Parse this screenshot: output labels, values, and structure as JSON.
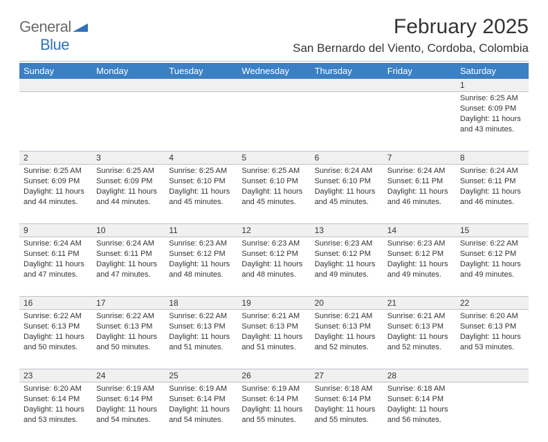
{
  "logo": {
    "text1": "General",
    "text2": "Blue"
  },
  "title": "February 2025",
  "location": "San Bernardo del Viento, Cordoba, Colombia",
  "colors": {
    "header_bg": "#3b7fc4",
    "header_text": "#ffffff",
    "daynum_bg": "#f0f0f0",
    "row_divider": "#b8c3ce",
    "text": "#333333",
    "logo_gray": "#6a6a6a",
    "logo_blue": "#2f71b8",
    "background": "#ffffff"
  },
  "fonts": {
    "title_size": 30,
    "location_size": 17,
    "header_size": 13,
    "daynum_size": 12,
    "body_size": 11,
    "logo_size": 22
  },
  "weekdays": [
    "Sunday",
    "Monday",
    "Tuesday",
    "Wednesday",
    "Thursday",
    "Friday",
    "Saturday"
  ],
  "weeks": [
    [
      null,
      null,
      null,
      null,
      null,
      null,
      {
        "n": "1",
        "sunrise": "6:25 AM",
        "sunset": "6:09 PM",
        "daylight": "11 hours and 43 minutes."
      }
    ],
    [
      {
        "n": "2",
        "sunrise": "6:25 AM",
        "sunset": "6:09 PM",
        "daylight": "11 hours and 44 minutes."
      },
      {
        "n": "3",
        "sunrise": "6:25 AM",
        "sunset": "6:09 PM",
        "daylight": "11 hours and 44 minutes."
      },
      {
        "n": "4",
        "sunrise": "6:25 AM",
        "sunset": "6:10 PM",
        "daylight": "11 hours and 45 minutes."
      },
      {
        "n": "5",
        "sunrise": "6:25 AM",
        "sunset": "6:10 PM",
        "daylight": "11 hours and 45 minutes."
      },
      {
        "n": "6",
        "sunrise": "6:24 AM",
        "sunset": "6:10 PM",
        "daylight": "11 hours and 45 minutes."
      },
      {
        "n": "7",
        "sunrise": "6:24 AM",
        "sunset": "6:11 PM",
        "daylight": "11 hours and 46 minutes."
      },
      {
        "n": "8",
        "sunrise": "6:24 AM",
        "sunset": "6:11 PM",
        "daylight": "11 hours and 46 minutes."
      }
    ],
    [
      {
        "n": "9",
        "sunrise": "6:24 AM",
        "sunset": "6:11 PM",
        "daylight": "11 hours and 47 minutes."
      },
      {
        "n": "10",
        "sunrise": "6:24 AM",
        "sunset": "6:11 PM",
        "daylight": "11 hours and 47 minutes."
      },
      {
        "n": "11",
        "sunrise": "6:23 AM",
        "sunset": "6:12 PM",
        "daylight": "11 hours and 48 minutes."
      },
      {
        "n": "12",
        "sunrise": "6:23 AM",
        "sunset": "6:12 PM",
        "daylight": "11 hours and 48 minutes."
      },
      {
        "n": "13",
        "sunrise": "6:23 AM",
        "sunset": "6:12 PM",
        "daylight": "11 hours and 49 minutes."
      },
      {
        "n": "14",
        "sunrise": "6:23 AM",
        "sunset": "6:12 PM",
        "daylight": "11 hours and 49 minutes."
      },
      {
        "n": "15",
        "sunrise": "6:22 AM",
        "sunset": "6:12 PM",
        "daylight": "11 hours and 49 minutes."
      }
    ],
    [
      {
        "n": "16",
        "sunrise": "6:22 AM",
        "sunset": "6:13 PM",
        "daylight": "11 hours and 50 minutes."
      },
      {
        "n": "17",
        "sunrise": "6:22 AM",
        "sunset": "6:13 PM",
        "daylight": "11 hours and 50 minutes."
      },
      {
        "n": "18",
        "sunrise": "6:22 AM",
        "sunset": "6:13 PM",
        "daylight": "11 hours and 51 minutes."
      },
      {
        "n": "19",
        "sunrise": "6:21 AM",
        "sunset": "6:13 PM",
        "daylight": "11 hours and 51 minutes."
      },
      {
        "n": "20",
        "sunrise": "6:21 AM",
        "sunset": "6:13 PM",
        "daylight": "11 hours and 52 minutes."
      },
      {
        "n": "21",
        "sunrise": "6:21 AM",
        "sunset": "6:13 PM",
        "daylight": "11 hours and 52 minutes."
      },
      {
        "n": "22",
        "sunrise": "6:20 AM",
        "sunset": "6:13 PM",
        "daylight": "11 hours and 53 minutes."
      }
    ],
    [
      {
        "n": "23",
        "sunrise": "6:20 AM",
        "sunset": "6:14 PM",
        "daylight": "11 hours and 53 minutes."
      },
      {
        "n": "24",
        "sunrise": "6:19 AM",
        "sunset": "6:14 PM",
        "daylight": "11 hours and 54 minutes."
      },
      {
        "n": "25",
        "sunrise": "6:19 AM",
        "sunset": "6:14 PM",
        "daylight": "11 hours and 54 minutes."
      },
      {
        "n": "26",
        "sunrise": "6:19 AM",
        "sunset": "6:14 PM",
        "daylight": "11 hours and 55 minutes."
      },
      {
        "n": "27",
        "sunrise": "6:18 AM",
        "sunset": "6:14 PM",
        "daylight": "11 hours and 55 minutes."
      },
      {
        "n": "28",
        "sunrise": "6:18 AM",
        "sunset": "6:14 PM",
        "daylight": "11 hours and 56 minutes."
      },
      null
    ]
  ],
  "labels": {
    "sunrise": "Sunrise:",
    "sunset": "Sunset:",
    "daylight": "Daylight:"
  }
}
